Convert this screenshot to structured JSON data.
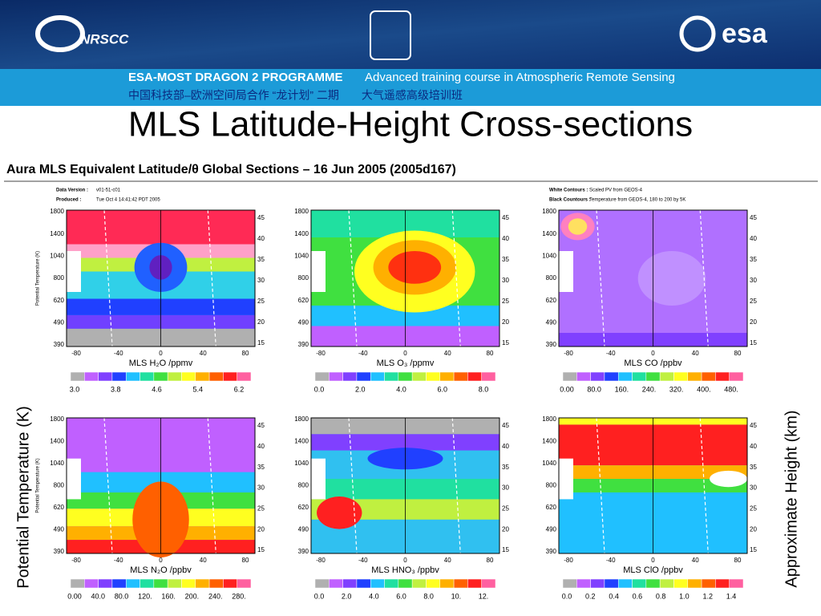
{
  "header": {
    "logo_left": "NRSCC",
    "logo_right": "esa",
    "programme": "ESA-MOST DRAGON 2 PROGRAMME",
    "course": "Advanced training course in Atmospheric Remote Sensing",
    "chinese": "中国科技部–欧洲空间局合作 “龙计划” 二期　　大气遥感高级培训班"
  },
  "title": "MLS Latitude-Height Cross-sections",
  "figure": {
    "title": "Aura MLS Equivalent Latitude/θ Global Sections – 16 Jun 2005 (2005d167)",
    "meta": [
      [
        "Data Version :",
        "v01-51-c01"
      ],
      [
        "Produced :",
        "Tue Oct 4 14:41:42 PDT 2005"
      ],
      [
        "White Contours :",
        "Scaled PV from GEOS-4"
      ],
      [
        "Black Countours :",
        "Temperature from GEOS-4, 180 to 200 by 5K"
      ]
    ],
    "left_label": "Potential Temperature (K)",
    "right_label": "Approximate Height (km)",
    "panel_ylabel": "Potential Temperature (K)",
    "left_ticks": [
      "390",
      "490",
      "620",
      "800",
      "1040",
      "1400",
      "1800"
    ],
    "right_ticks": [
      "15",
      "20",
      "25",
      "30",
      "35",
      "40",
      "45"
    ],
    "x_ticks": [
      "-80",
      "-40",
      "0",
      "40",
      "80"
    ],
    "panels": [
      {
        "label": "MLS H₂O /ppmv",
        "colorbar": [
          "3.0",
          "3.8",
          "4.6",
          "5.4",
          "6.2"
        ]
      },
      {
        "label": "MLS O₃ /ppmv",
        "colorbar": [
          "0.0",
          "2.0",
          "4.0",
          "6.0",
          "8.0"
        ]
      },
      {
        "label": "MLS CO /ppbv",
        "colorbar": [
          "0.00",
          "80.0",
          "160.",
          "240.",
          "320.",
          "400.",
          "480."
        ]
      },
      {
        "label": "MLS N₂O /ppbv",
        "colorbar": [
          "0.00",
          "40.0",
          "80.0",
          "120.",
          "160.",
          "200.",
          "240.",
          "280."
        ]
      },
      {
        "label": "MLS HNO₃ /ppbv",
        "colorbar": [
          "0.0",
          "2.0",
          "4.0",
          "6.0",
          "8.0",
          "10.",
          "12."
        ]
      },
      {
        "label": "MLS ClO /ppbv",
        "colorbar": [
          "0.0",
          "0.2",
          "0.4",
          "0.6",
          "0.8",
          "1.0",
          "1.2",
          "1.4"
        ]
      }
    ]
  }
}
